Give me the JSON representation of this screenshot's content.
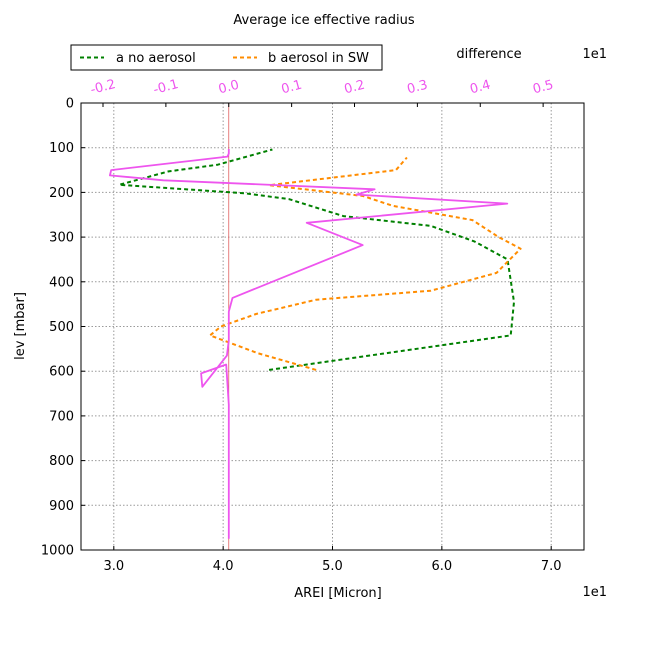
{
  "chart_data": {
    "type": "line",
    "title": "Average ice effective radius",
    "xlabel": "AREI [Micron]",
    "ylabel": "lev [mbar]",
    "x_offset_label": "1e1",
    "xlim": [
      2.7,
      7.3
    ],
    "ylim": [
      1000,
      0
    ],
    "xticks": [
      "3.0",
      "4.0",
      "5.0",
      "6.0",
      "7.0"
    ],
    "yticks": [
      "0",
      "100",
      "200",
      "300",
      "400",
      "500",
      "600",
      "700",
      "800",
      "900",
      "1000"
    ],
    "grid": true,
    "legend_position": "top-left",
    "top_axis": {
      "title": "difference",
      "offset_label": "1e1",
      "xlim": [
        -0.235,
        0.565
      ],
      "ticks": [
        "-0.2",
        "-0.1",
        "0.0",
        "0.1",
        "0.2",
        "0.3",
        "0.4",
        "0.5"
      ],
      "tick_values": [
        -0.2,
        -0.1,
        0.0,
        0.1,
        0.2,
        0.3,
        0.4,
        0.5
      ],
      "color": "#ee55ee"
    },
    "series": [
      {
        "name": "a no aerosol",
        "axis": "bottom",
        "color": "#008000",
        "style": "dashed",
        "x": [
          4.42,
          6.63,
          6.66,
          6.6,
          6.3,
          5.9,
          5.1,
          4.6,
          4.2,
          3.05,
          3.5,
          3.95,
          4.45
        ],
        "y": [
          597,
          520,
          445,
          350,
          310,
          275,
          253,
          215,
          202,
          183,
          153,
          138,
          104
        ]
      },
      {
        "name": "b aerosol in SW",
        "axis": "bottom",
        "color": "#ff8c00",
        "style": "dashed",
        "x": [
          4.85,
          4.32,
          3.88,
          3.98,
          4.3,
          4.85,
          5.9,
          6.5,
          6.72,
          6.52,
          6.28,
          5.55,
          5.28,
          4.42,
          5.58,
          5.68
        ],
        "y": [
          597,
          560,
          520,
          500,
          472,
          440,
          420,
          380,
          326,
          300,
          262,
          230,
          208,
          184,
          150,
          122
        ]
      },
      {
        "name": "difference",
        "axis": "top",
        "color": "#ee55ee",
        "style": "solid",
        "x": [
          0.0,
          0.0,
          -0.004,
          -0.044,
          -0.042,
          -0.003,
          0.0,
          0.0,
          0.006,
          0.213,
          0.124,
          0.443,
          0.203,
          0.232,
          -0.104,
          -0.189,
          -0.187,
          -0.002,
          0.0,
          0.0
        ],
        "y": [
          975,
          675,
          585,
          605,
          635,
          565,
          531,
          467,
          436,
          318,
          268,
          225,
          205,
          193,
          173,
          162,
          150,
          120,
          113,
          103
        ]
      }
    ]
  }
}
